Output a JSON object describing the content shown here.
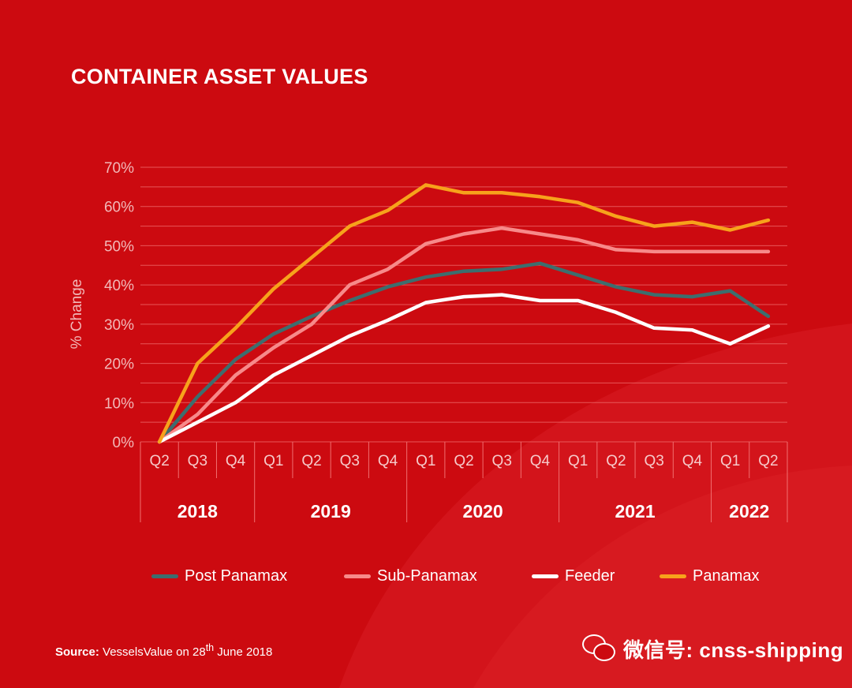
{
  "title": "CONTAINER ASSET VALUES",
  "source": {
    "label": "Source:",
    "text_before": " VesselsValue on 28",
    "superscript": "th",
    "text_after": " June 2018"
  },
  "watermark": {
    "icon": "wechat-icon",
    "text": "微信号: cnss-shipping"
  },
  "colors": {
    "background": "#cc0a10",
    "grid": "#f07070",
    "post_panamax": "#3d6e6e",
    "sub_panamax": "#f78a8a",
    "feeder": "#ffffff",
    "panamax": "#f7a21b"
  },
  "chart_data": {
    "type": "line",
    "title": "CONTAINER ASSET VALUES",
    "ylabel": "% Change",
    "xlabel": "",
    "ylim": [
      0,
      70
    ],
    "yticks": [
      0,
      10,
      20,
      30,
      40,
      50,
      60,
      70
    ],
    "ytick_labels": [
      "0%",
      "10%",
      "20%",
      "30%",
      "40%",
      "50%",
      "60%",
      "70%"
    ],
    "grid": true,
    "legend_position": "bottom",
    "categories": [
      "Q2",
      "Q3",
      "Q4",
      "Q1",
      "Q2",
      "Q3",
      "Q4",
      "Q1",
      "Q2",
      "Q3",
      "Q4",
      "Q1",
      "Q2",
      "Q3",
      "Q4",
      "Q1",
      "Q2"
    ],
    "years": [
      {
        "label": "2018",
        "start": 0,
        "count": 3
      },
      {
        "label": "2019",
        "start": 3,
        "count": 4
      },
      {
        "label": "2020",
        "start": 7,
        "count": 4
      },
      {
        "label": "2021",
        "start": 11,
        "count": 4
      },
      {
        "label": "2022",
        "start": 15,
        "count": 2
      }
    ],
    "series": [
      {
        "name": "Post Panamax",
        "color": "#3d6e6e",
        "values": [
          0,
          11.5,
          21,
          27.5,
          32,
          36,
          39.5,
          42,
          43.5,
          44,
          45.5,
          42.5,
          39.5,
          37.5,
          37,
          38.5,
          32
        ]
      },
      {
        "name": "Sub-Panamax",
        "color": "#f78a8a",
        "values": [
          0,
          7,
          17,
          24,
          30,
          40,
          44,
          50.5,
          53,
          54.5,
          53,
          51.5,
          49,
          48.5,
          48.5,
          48.5,
          48.5
        ]
      },
      {
        "name": "Feeder",
        "color": "#ffffff",
        "values": [
          0,
          5,
          10,
          17,
          22,
          27,
          31,
          35.5,
          37,
          37.5,
          36,
          36,
          33,
          29,
          28.5,
          25,
          29.5
        ]
      },
      {
        "name": "Panamax",
        "color": "#f7a21b",
        "values": [
          0,
          20,
          29,
          39,
          47,
          55,
          59,
          65.5,
          63.5,
          63.5,
          62.5,
          61,
          57.5,
          55,
          56,
          54,
          56.5
        ]
      }
    ]
  }
}
